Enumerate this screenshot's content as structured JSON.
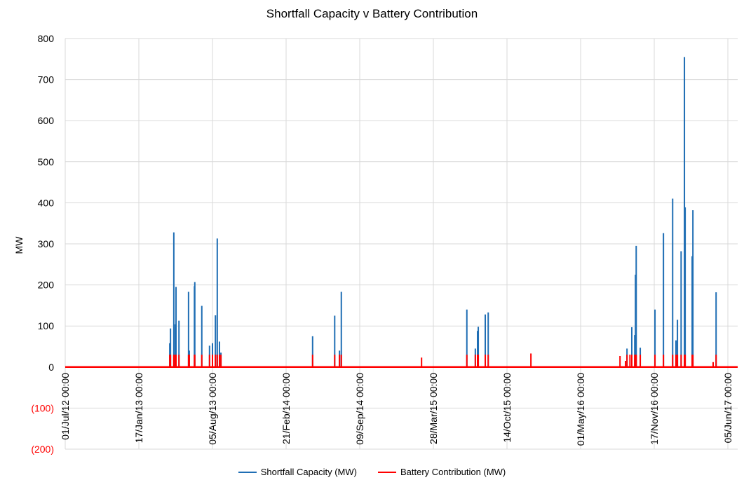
{
  "chart_data": {
    "type": "line",
    "title": "Shortfall Capacity v Battery Contribution",
    "xlabel": "",
    "ylabel": "MW",
    "x_unit": "days since 01/Jul/12 00:00",
    "xlim": [
      0,
      1827
    ],
    "ylim": [
      -200,
      800
    ],
    "grid": true,
    "legend_position": "bottom",
    "y_ticks": [
      {
        "value": 800,
        "label": "800",
        "color": "#000000"
      },
      {
        "value": 700,
        "label": "700",
        "color": "#000000"
      },
      {
        "value": 600,
        "label": "600",
        "color": "#000000"
      },
      {
        "value": 500,
        "label": "500",
        "color": "#000000"
      },
      {
        "value": 400,
        "label": "400",
        "color": "#000000"
      },
      {
        "value": 300,
        "label": "300",
        "color": "#000000"
      },
      {
        "value": 200,
        "label": "200",
        "color": "#000000"
      },
      {
        "value": 100,
        "label": "100",
        "color": "#000000"
      },
      {
        "value": 0,
        "label": "0",
        "color": "#000000"
      },
      {
        "value": -100,
        "label": "(100)",
        "color": "#ff0000"
      },
      {
        "value": -200,
        "label": "(200)",
        "color": "#ff0000"
      }
    ],
    "x_ticks": [
      {
        "value": 0,
        "label": "01/Jul/12 00:00"
      },
      {
        "value": 200,
        "label": "17/Jan/13 00:00"
      },
      {
        "value": 400,
        "label": "05/Aug/13 00:00"
      },
      {
        "value": 600,
        "label": "21/Feb/14 00:00"
      },
      {
        "value": 800,
        "label": "09/Sep/14 00:00"
      },
      {
        "value": 1000,
        "label": "28/Mar/15 00:00"
      },
      {
        "value": 1200,
        "label": "14/Oct/15 00:00"
      },
      {
        "value": 1400,
        "label": "01/May/16 00:00"
      },
      {
        "value": 1600,
        "label": "17/Nov/16 00:00"
      },
      {
        "value": 1800,
        "label": "05/Jun/17 00:00"
      }
    ],
    "series": [
      {
        "name": "Shortfall Capacity (MW)",
        "color": "#1f6eb4",
        "points": [
          [
            284,
            58
          ],
          [
            286,
            94
          ],
          [
            295,
            328
          ],
          [
            299,
            104
          ],
          [
            301,
            195
          ],
          [
            309,
            113
          ],
          [
            335,
            183
          ],
          [
            337,
            40
          ],
          [
            351,
            197
          ],
          [
            352,
            207
          ],
          [
            371,
            149
          ],
          [
            392,
            52
          ],
          [
            400,
            58
          ],
          [
            408,
            126
          ],
          [
            413,
            313
          ],
          [
            419,
            62
          ],
          [
            423,
            35
          ],
          [
            672,
            75
          ],
          [
            732,
            125
          ],
          [
            745,
            40
          ],
          [
            750,
            183
          ],
          [
            1091,
            140
          ],
          [
            1114,
            45
          ],
          [
            1120,
            88
          ],
          [
            1122,
            98
          ],
          [
            1141,
            128
          ],
          [
            1149,
            133
          ],
          [
            1526,
            45
          ],
          [
            1539,
            97
          ],
          [
            1547,
            78
          ],
          [
            1549,
            225
          ],
          [
            1551,
            295
          ],
          [
            1562,
            47
          ],
          [
            1602,
            140
          ],
          [
            1625,
            326
          ],
          [
            1650,
            410
          ],
          [
            1659,
            65
          ],
          [
            1663,
            115
          ],
          [
            1673,
            282
          ],
          [
            1682,
            755
          ],
          [
            1684,
            389
          ],
          [
            1703,
            270
          ],
          [
            1705,
            382
          ],
          [
            1768,
            182
          ]
        ]
      },
      {
        "name": "Battery Contribution (MW)",
        "color": "#ff0000",
        "points": [
          [
            284,
            30
          ],
          [
            286,
            30
          ],
          [
            295,
            30
          ],
          [
            299,
            30
          ],
          [
            301,
            30
          ],
          [
            309,
            30
          ],
          [
            335,
            30
          ],
          [
            337,
            30
          ],
          [
            351,
            30
          ],
          [
            352,
            30
          ],
          [
            371,
            30
          ],
          [
            392,
            30
          ],
          [
            400,
            30
          ],
          [
            408,
            30
          ],
          [
            413,
            30
          ],
          [
            419,
            30
          ],
          [
            423,
            30
          ],
          [
            672,
            30
          ],
          [
            732,
            30
          ],
          [
            745,
            30
          ],
          [
            750,
            30
          ],
          [
            968,
            23
          ],
          [
            1091,
            30
          ],
          [
            1114,
            30
          ],
          [
            1120,
            30
          ],
          [
            1122,
            30
          ],
          [
            1141,
            30
          ],
          [
            1149,
            30
          ],
          [
            1265,
            33
          ],
          [
            1507,
            27
          ],
          [
            1522,
            15
          ],
          [
            1526,
            30
          ],
          [
            1534,
            30
          ],
          [
            1539,
            30
          ],
          [
            1547,
            30
          ],
          [
            1549,
            30
          ],
          [
            1551,
            30
          ],
          [
            1562,
            30
          ],
          [
            1602,
            30
          ],
          [
            1625,
            30
          ],
          [
            1650,
            30
          ],
          [
            1659,
            30
          ],
          [
            1663,
            30
          ],
          [
            1673,
            30
          ],
          [
            1682,
            30
          ],
          [
            1684,
            30
          ],
          [
            1703,
            30
          ],
          [
            1705,
            30
          ],
          [
            1760,
            12
          ],
          [
            1768,
            30
          ]
        ]
      }
    ]
  }
}
